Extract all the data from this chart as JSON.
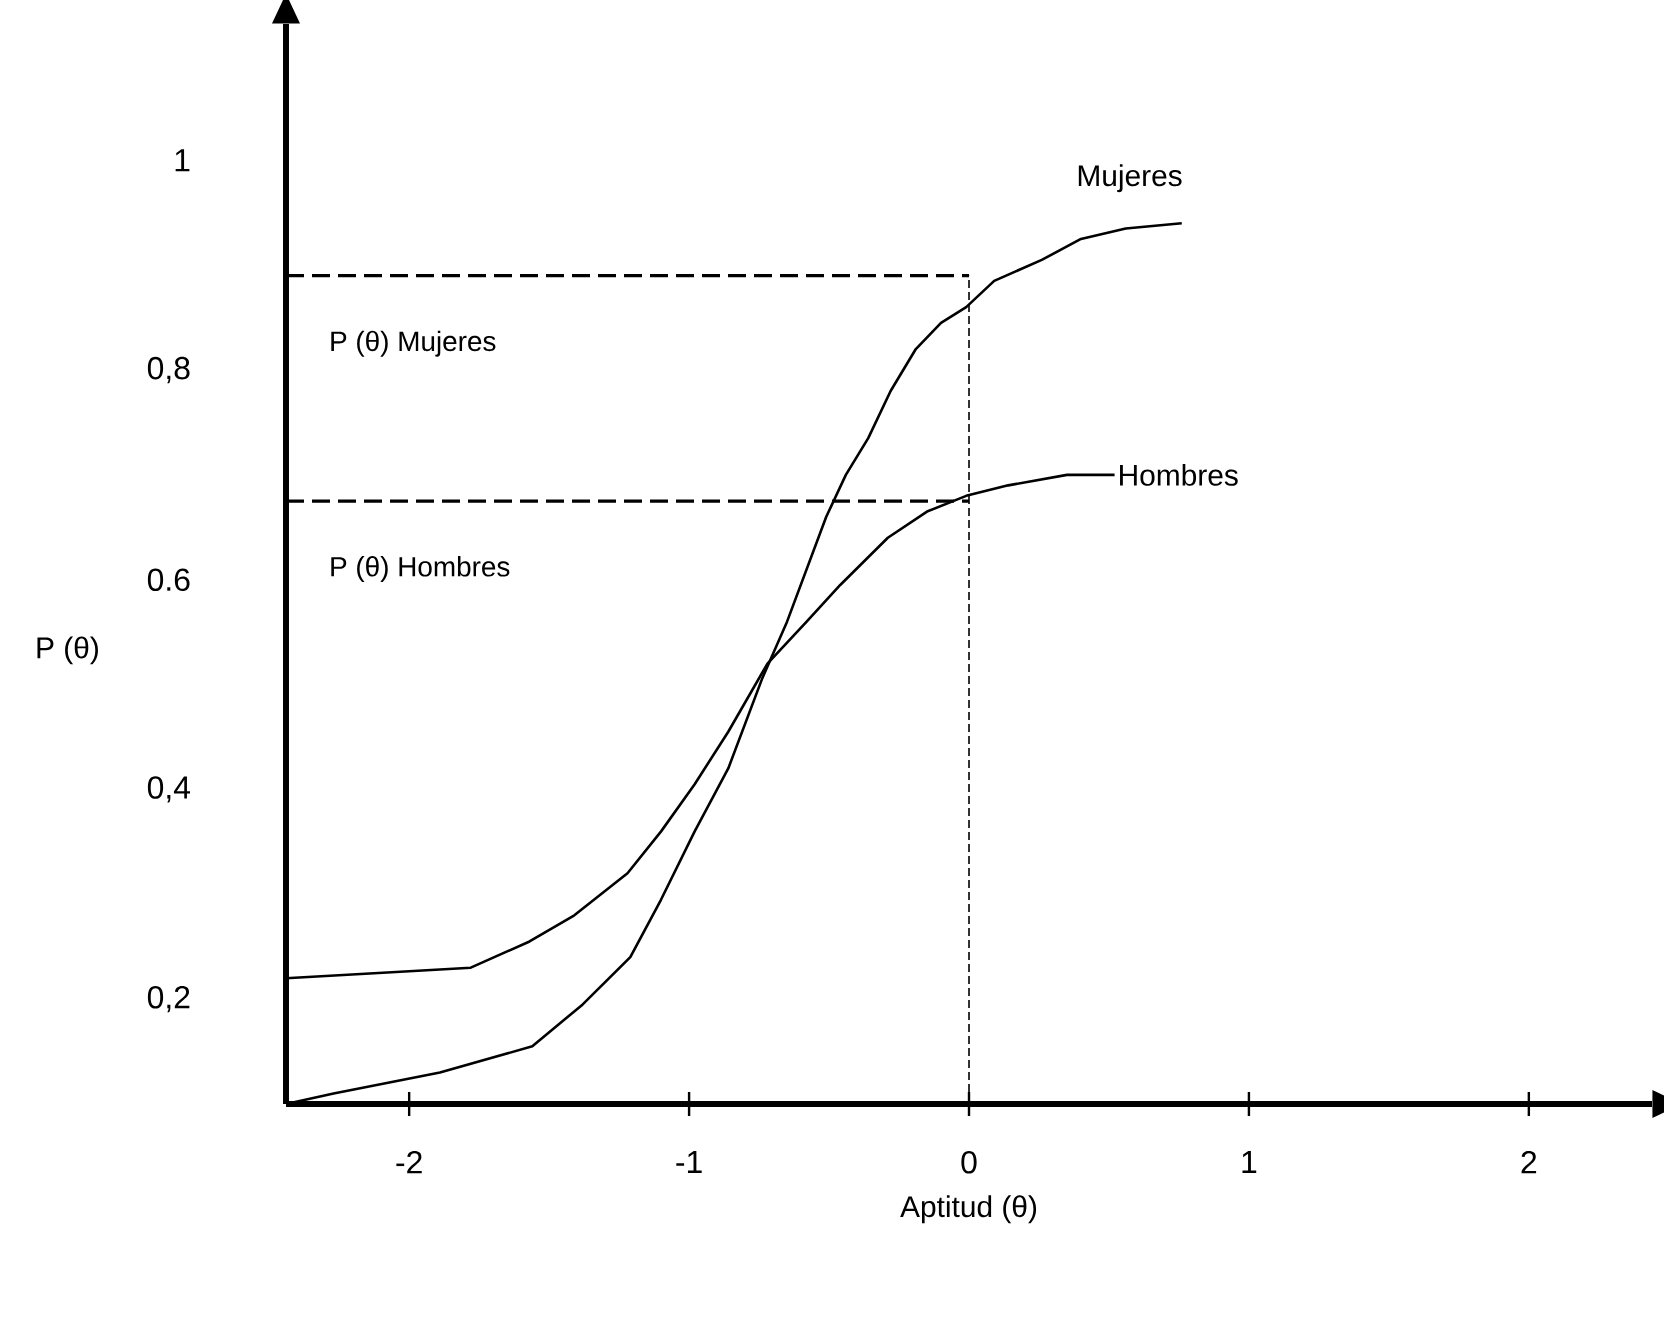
{
  "chart_data": {
    "type": "line",
    "xlabel": "Aptitud (θ)",
    "ylabel": "P (θ)",
    "xlim": [
      -2.44,
      2.44
    ],
    "ylim": [
      0.1,
      1.13
    ],
    "xticks": [
      -2,
      -1,
      0,
      1,
      2
    ],
    "yticks": [
      {
        "value": 0.2,
        "label": "0,2"
      },
      {
        "value": 0.4,
        "label": "0,4"
      },
      {
        "value": 0.6,
        "label": "0.6"
      },
      {
        "value": 0.8,
        "label": "0,8"
      },
      1
    ],
    "grid": false,
    "marker": "none",
    "line_style": "solid",
    "series": [
      {
        "name": "Mujeres",
        "color": "#000000",
        "x": [
          -2.44,
          -2.27,
          -1.89,
          -1.56,
          -1.38,
          -1.21,
          -1.1,
          -0.98,
          -0.86,
          -0.74,
          -0.65,
          -0.58,
          -0.51,
          -0.44,
          -0.36,
          -0.28,
          -0.19,
          -0.1,
          -0.01,
          0.09,
          0.26,
          0.4,
          0.56,
          0.76
        ],
        "values": [
          0.1,
          0.11,
          0.13,
          0.155,
          0.195,
          0.24,
          0.295,
          0.36,
          0.42,
          0.505,
          0.56,
          0.61,
          0.66,
          0.7,
          0.735,
          0.78,
          0.82,
          0.845,
          0.86,
          0.885,
          0.905,
          0.925,
          0.935,
          0.94
        ]
      },
      {
        "name": "Hombres",
        "color": "#000000",
        "x": [
          -2.44,
          -2.11,
          -1.78,
          -1.57,
          -1.41,
          -1.22,
          -1.1,
          -0.98,
          -0.86,
          -0.72,
          -0.58,
          -0.46,
          -0.29,
          -0.15,
          -0.01,
          0.14,
          0.35,
          0.52
        ],
        "values": [
          0.22,
          0.225,
          0.23,
          0.255,
          0.28,
          0.32,
          0.36,
          0.405,
          0.455,
          0.52,
          0.56,
          0.595,
          0.64,
          0.665,
          0.68,
          0.69,
          0.7,
          0.7
        ]
      }
    ],
    "ref_lines": [
      {
        "axis": "y",
        "value": 0.89,
        "label": "P (θ) Mujeres",
        "line_style": "dashed"
      },
      {
        "axis": "y",
        "value": 0.675,
        "label": "P (θ) Hombres",
        "line_style": "dashed"
      },
      {
        "axis": "x",
        "value": 0,
        "line_style": "dashed"
      }
    ]
  }
}
